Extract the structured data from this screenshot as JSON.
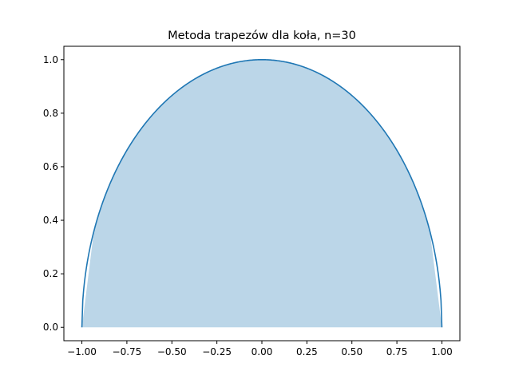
{
  "chart_data": {
    "type": "area",
    "title": "Metoda trapezów dla koła, n=30",
    "xlabel": "",
    "ylabel": "",
    "xlim": [
      -1.1,
      1.1
    ],
    "ylim": [
      -0.05,
      1.05
    ],
    "grid": false,
    "x_ticks": [
      -1.0,
      -0.75,
      -0.5,
      -0.25,
      0.0,
      0.25,
      0.5,
      0.75,
      1.0
    ],
    "x_tick_labels": [
      "−1.00",
      "−0.75",
      "−0.50",
      "−0.25",
      "0.00",
      "0.25",
      "0.50",
      "0.75",
      "1.00"
    ],
    "y_ticks": [
      0.0,
      0.2,
      0.4,
      0.6,
      0.8,
      1.0
    ],
    "y_tick_labels": [
      "0.0",
      "0.2",
      "0.4",
      "0.6",
      "0.8",
      "1.0"
    ],
    "series": [
      {
        "kind": "line",
        "function": "y = sqrt(1 - x^2)",
        "x_range": [
          -1.0,
          1.0
        ],
        "color": "#1f77b4"
      },
      {
        "kind": "filled-trapezoids",
        "n": 30,
        "x_range": [
          -1.0,
          1.0
        ],
        "color": "#1f77b4",
        "alpha": 0.3
      }
    ]
  }
}
